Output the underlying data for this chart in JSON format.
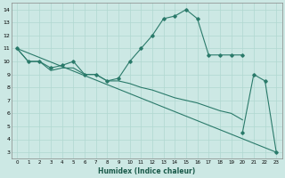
{
  "title": "",
  "xlabel": "Humidex (Indice chaleur)",
  "bg_color": "#cce8e4",
  "grid_color": "#b0d8d0",
  "line_color": "#2a7a6a",
  "xlim": [
    -0.5,
    23.5
  ],
  "ylim": [
    2.5,
    14.5
  ],
  "xticks": [
    0,
    1,
    2,
    3,
    4,
    5,
    6,
    7,
    8,
    9,
    10,
    11,
    12,
    13,
    14,
    15,
    16,
    17,
    18,
    19,
    20,
    21,
    22,
    23
  ],
  "yticks": [
    3,
    4,
    5,
    6,
    7,
    8,
    9,
    10,
    11,
    12,
    13,
    14
  ],
  "series1_x": [
    0,
    1,
    2,
    3,
    4,
    5,
    6,
    7,
    8,
    9,
    10,
    11,
    12,
    13,
    14,
    15,
    16,
    17,
    18,
    19,
    20
  ],
  "series1_y": [
    11,
    10,
    10,
    9.5,
    9.7,
    10,
    9,
    9,
    8.5,
    8.7,
    10,
    11,
    12,
    13.3,
    13.5,
    14,
    13.3,
    10.5,
    10.5,
    10.5,
    10.5
  ],
  "series2_x": [
    0,
    1,
    2,
    3,
    4,
    5,
    6,
    7,
    8,
    9,
    10,
    11,
    12,
    13,
    14,
    15,
    16,
    17,
    18,
    19,
    20
  ],
  "series2_y": [
    11,
    10,
    10,
    9.3,
    9.5,
    9.5,
    9,
    9,
    8.5,
    8.5,
    8.3,
    8,
    7.8,
    7.5,
    7.2,
    7,
    6.8,
    6.5,
    6.2,
    6,
    5.5
  ],
  "series3_x": [
    0,
    23
  ],
  "series3_y": [
    11,
    3
  ],
  "series4_x": [
    20,
    21,
    22,
    23
  ],
  "series4_y": [
    4.5,
    9,
    8.5,
    3
  ]
}
